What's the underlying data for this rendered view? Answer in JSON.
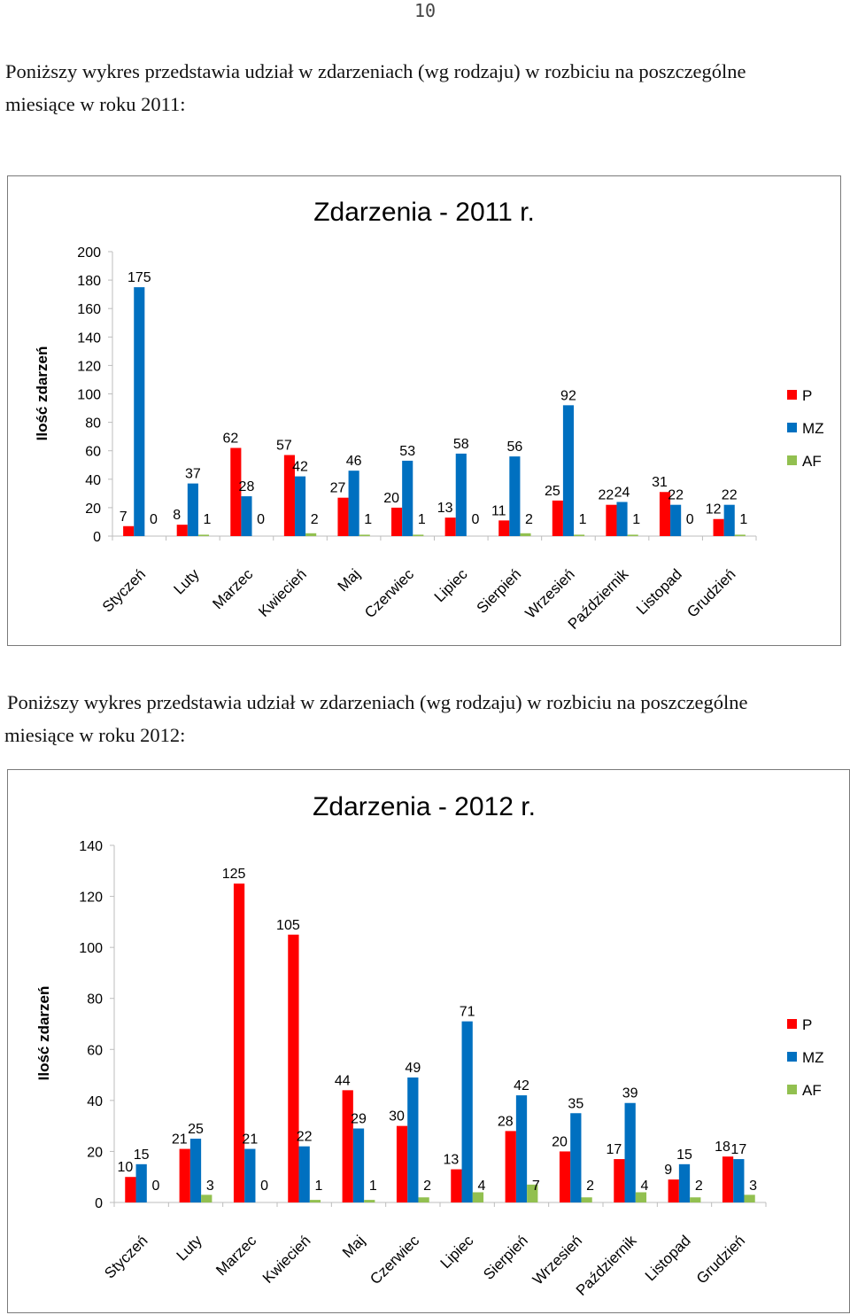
{
  "page": {
    "number": "10"
  },
  "intro_2011": {
    "line1": "Poniższy wykres przedstawia udział w zdarzeniach (wg rodzaju) w rozbiciu  na poszczególne",
    "line2": "miesiące w roku 2011:"
  },
  "intro_2012": {
    "line1": "Poniższy wykres przedstawia udział w zdarzeniach (wg rodzaju) w rozbiciu na poszczególne",
    "line2": "miesiące w roku 2012:"
  },
  "colors": {
    "P": "#ff0000",
    "MZ": "#0070c0",
    "AF": "#92c050"
  },
  "chart_data": [
    {
      "type": "bar",
      "title": "Zdarzenia - 2011 r.",
      "ylabel": "Ilość zdarzeń",
      "xlabel": "",
      "ylim": [
        0,
        200
      ],
      "yticks": [
        0,
        20,
        40,
        60,
        80,
        100,
        120,
        140,
        160,
        180,
        200
      ],
      "legend": "right",
      "grid": false,
      "categories": [
        "Styczeń",
        "Luty",
        "Marzec",
        "Kwiecień",
        "Maj",
        "Czerwiec",
        "Lipiec",
        "Sierpień",
        "Wrzesień",
        "Październik",
        "Listopad",
        "Grudzień"
      ],
      "series": [
        {
          "name": "P",
          "values": [
            7,
            8,
            62,
            57,
            27,
            20,
            13,
            11,
            25,
            22,
            31,
            12
          ]
        },
        {
          "name": "MZ",
          "values": [
            175,
            37,
            28,
            42,
            46,
            53,
            58,
            56,
            92,
            24,
            22,
            22
          ]
        },
        {
          "name": "AF",
          "values": [
            0,
            1,
            0,
            2,
            1,
            1,
            0,
            2,
            1,
            1,
            0,
            1
          ]
        }
      ]
    },
    {
      "type": "bar",
      "title": "Zdarzenia - 2012 r.",
      "ylabel": "Ilość zdarzeń",
      "xlabel": "",
      "ylim": [
        0,
        140
      ],
      "yticks": [
        0,
        20,
        40,
        60,
        80,
        100,
        120,
        140
      ],
      "legend": "right",
      "grid": false,
      "categories": [
        "Styczeń",
        "Luty",
        "Marzec",
        "Kwiecień",
        "Maj",
        "Czerwiec",
        "Lipiec",
        "Sierpień",
        "Wrzesień",
        "Październik",
        "Listopad",
        "Grudzień"
      ],
      "series": [
        {
          "name": "P",
          "values": [
            10,
            21,
            125,
            105,
            44,
            30,
            13,
            28,
            20,
            17,
            9,
            18
          ]
        },
        {
          "name": "MZ",
          "values": [
            15,
            25,
            21,
            22,
            29,
            49,
            71,
            42,
            35,
            39,
            15,
            17
          ]
        },
        {
          "name": "AF",
          "values": [
            0,
            3,
            0,
            1,
            1,
            2,
            4,
            7,
            2,
            4,
            2,
            3
          ]
        }
      ]
    }
  ]
}
